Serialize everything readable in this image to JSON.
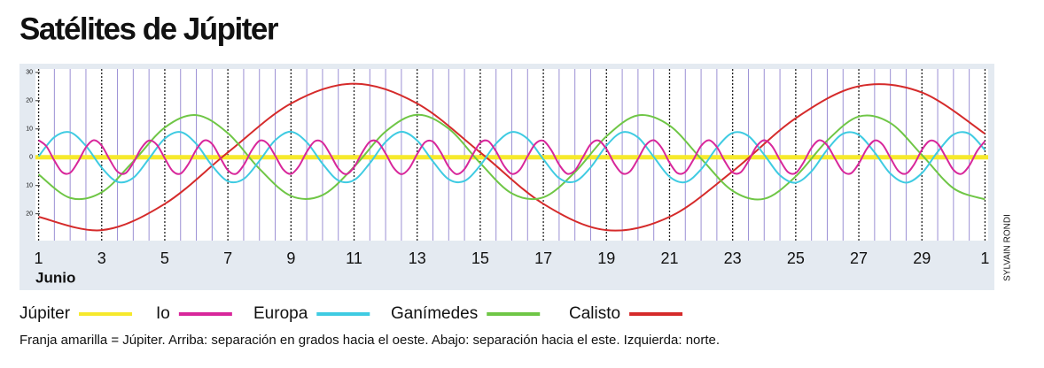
{
  "chart_data": {
    "type": "line",
    "title": "Satélites de Júpiter",
    "x_label": "Junio",
    "credit": "SYLVAIN RONDI",
    "footnote": "Franja amarilla = Júpiter. Arriba: separación en grados hacia el oeste. Abajo: separación hacia el este. Izquierda: norte.",
    "xlim": [
      0.9,
      31.1
    ],
    "ylim": [
      -29.5,
      31.2
    ],
    "xticks": [
      1,
      3,
      5,
      7,
      9,
      11,
      13,
      15,
      17,
      19,
      21,
      23,
      25,
      27,
      29,
      {
        "value": 31,
        "label": "1"
      }
    ],
    "yticks": [
      30,
      20,
      10,
      0,
      {
        "value": -10,
        "label": "10"
      },
      {
        "value": -20,
        "label": "20"
      }
    ],
    "grid": true,
    "series": [
      {
        "name": "Júpiter",
        "color": "#f6e92c",
        "x": [
          0.9,
          31.1
        ],
        "values": [
          0,
          0
        ]
      },
      {
        "name": "Io",
        "color": "#d8279b",
        "x": [
          1,
          1.25,
          1.5,
          1.75,
          2,
          2.25,
          2.5,
          2.75,
          3,
          3.25,
          3.5,
          3.75,
          4,
          4.25,
          4.5,
          4.75,
          5,
          5.25,
          5.5,
          5.75,
          6,
          6.25,
          6.5,
          6.75,
          7,
          7.25,
          7.5,
          7.75,
          8,
          8.25,
          8.5,
          8.75,
          9,
          9.25,
          9.5,
          9.75,
          10,
          10.25,
          10.5,
          10.75,
          11,
          11.25,
          11.5,
          11.75,
          12,
          12.25,
          12.5,
          12.75,
          13,
          13.25,
          13.5,
          13.75,
          14,
          14.25,
          14.5,
          14.75,
          15,
          15.25,
          15.5,
          15.75,
          16,
          16.25,
          16.5,
          16.75,
          17,
          17.25,
          17.5,
          17.75,
          18,
          18.25,
          18.5,
          18.75,
          19,
          19.25,
          19.5,
          19.75,
          20,
          20.25,
          20.5,
          20.75,
          21,
          21.25,
          21.5,
          21.75,
          22,
          22.25,
          22.5,
          22.75,
          23,
          23.25,
          23.5,
          23.75,
          24,
          24.25,
          24.5,
          24.75,
          25,
          25.25,
          25.5,
          25.75,
          26,
          26.25,
          26.5,
          26.75,
          27,
          27.25,
          27.5,
          27.75,
          28,
          28.25,
          28.5,
          28.75,
          29,
          29.25,
          29.5,
          29.75,
          30,
          30.25,
          30.5,
          30.75,
          31
        ],
        "values": [
          6.0,
          3.8,
          -1.2,
          -5.3,
          -5.5,
          -1.6,
          3.5,
          6.0,
          4.1,
          -0.8,
          -5.1,
          -5.7,
          -2.0,
          3.1,
          5.9,
          4.4,
          -0.4,
          -4.9,
          -5.8,
          -2.4,
          2.7,
          5.9,
          4.7,
          0.0,
          -4.6,
          -5.9,
          -2.8,
          2.3,
          5.8,
          4.9,
          0.5,
          -4.3,
          -5.9,
          -3.2,
          1.9,
          5.6,
          5.2,
          0.9,
          -4.0,
          -6.0,
          -3.5,
          1.5,
          5.5,
          5.4,
          1.3,
          -3.7,
          -6.0,
          -3.9,
          1.1,
          5.3,
          5.5,
          1.7,
          -3.4,
          -6.0,
          -4.2,
          0.7,
          5.1,
          5.7,
          2.1,
          -3.0,
          -5.9,
          -4.5,
          0.3,
          4.8,
          5.8,
          2.5,
          -2.6,
          -5.8,
          -4.7,
          -0.1,
          4.6,
          5.9,
          2.9,
          -2.3,
          -5.7,
          -5.0,
          -0.6,
          4.3,
          6.0,
          3.3,
          -1.9,
          -5.6,
          -5.2,
          -1.0,
          4.0,
          6.0,
          3.6,
          -1.4,
          -5.4,
          -5.4,
          -1.4,
          3.7,
          6.0,
          3.9,
          -1.0,
          -5.2,
          -5.6,
          -1.8,
          3.3,
          6.0,
          4.2,
          -0.6,
          -5.0,
          -5.7,
          -2.2,
          2.9,
          5.9,
          4.5,
          -0.2,
          -4.8,
          -5.8,
          -2.6,
          2.6,
          5.8,
          4.8,
          0.2,
          -4.5,
          -5.9,
          -3.0,
          2.2,
          5.7
        ]
      },
      {
        "name": "Europa",
        "color": "#3fcbe2",
        "x": [
          1,
          1.5,
          2,
          2.5,
          3,
          3.5,
          4,
          4.5,
          5,
          5.5,
          6,
          6.5,
          7,
          7.5,
          8,
          8.5,
          9,
          9.5,
          10,
          10.5,
          11,
          11.5,
          12,
          12.5,
          13,
          13.5,
          14,
          14.5,
          15,
          15.5,
          16,
          16.5,
          17,
          17.5,
          18,
          18.5,
          19,
          19.5,
          20,
          20.5,
          21,
          21.5,
          22,
          22.5,
          23,
          23.5,
          24,
          24.5,
          25,
          25.5,
          26,
          26.5,
          27,
          27.5,
          28,
          28.5,
          29,
          29.5,
          30,
          30.5,
          31
        ],
        "values": [
          0.3,
          7.1,
          8.8,
          4.0,
          -3.7,
          -8.7,
          -7.3,
          -0.5,
          6.6,
          8.9,
          4.7,
          -3.0,
          -8.5,
          -7.7,
          -1.3,
          6.0,
          9.0,
          5.3,
          -2.3,
          -8.2,
          -8.1,
          -2.1,
          5.4,
          9.0,
          5.9,
          -1.5,
          -7.8,
          -8.4,
          -2.9,
          4.8,
          8.9,
          6.5,
          -0.7,
          -7.4,
          -8.6,
          -3.6,
          4.1,
          8.8,
          7.0,
          0.1,
          -6.9,
          -8.8,
          -4.3,
          3.4,
          8.6,
          7.5,
          0.9,
          -6.4,
          -9.0,
          -5.0,
          2.7,
          8.3,
          7.9,
          1.7,
          -5.8,
          -9.0,
          -5.6,
          1.9,
          8.0,
          8.3,
          2.5
        ]
      },
      {
        "name": "Ganímedes",
        "color": "#6fc646",
        "x": [
          1,
          2,
          3,
          4,
          5,
          6,
          7,
          8,
          9,
          10,
          11,
          12,
          13,
          14,
          15,
          16,
          17,
          18,
          19,
          20,
          21,
          22,
          23,
          24,
          25,
          26,
          27,
          28,
          29,
          30,
          31
        ],
        "values": [
          -6.1,
          -14.4,
          -12.4,
          -1.5,
          10.5,
          14.9,
          8.5,
          -4.1,
          -13.7,
          -13.4,
          -3.4,
          9.1,
          15.0,
          10.1,
          -2.1,
          -12.8,
          -14.2,
          -5.3,
          7.4,
          14.8,
          11.2,
          -0.5,
          -11.9,
          -14.7,
          -6.8,
          5.9,
          14.4,
          12.1,
          0.8,
          -11.0,
          -14.9
        ]
      },
      {
        "name": "Calisto",
        "color": "#d52b2b",
        "x": [
          1,
          3,
          5,
          7,
          9,
          11,
          13,
          15,
          17,
          19,
          21,
          23,
          25,
          27,
          29,
          31
        ],
        "values": [
          -21.1,
          -25.8,
          -16.5,
          1.7,
          19.0,
          26.0,
          19.0,
          1.7,
          -16.5,
          -25.8,
          -21.1,
          -5.0,
          13.8,
          25.1,
          22.9,
          8.3
        ]
      }
    ]
  }
}
